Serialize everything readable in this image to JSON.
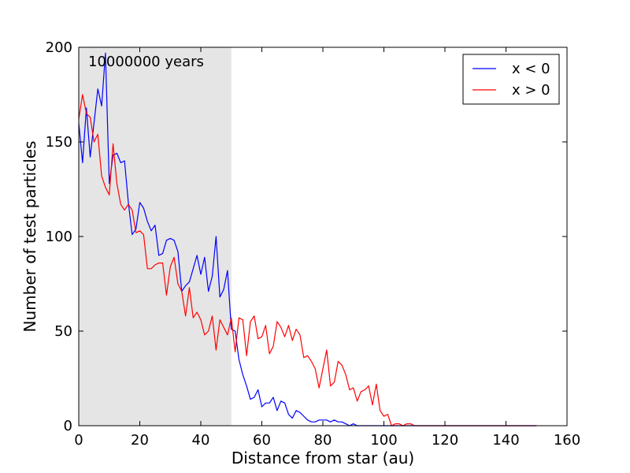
{
  "colors": {
    "shade": "#e5e5e5",
    "series_neg": "#0000ff",
    "series_pos": "#ff0000",
    "axes": "#000000"
  },
  "chart_data": {
    "type": "line",
    "title": "",
    "xlabel": "Distance from star (au)",
    "ylabel": "Number of test particles",
    "annotation": "10000000 years",
    "xlim": [
      0,
      160
    ],
    "ylim": [
      0,
      200
    ],
    "xticks": [
      0,
      20,
      40,
      60,
      80,
      100,
      120,
      140,
      160
    ],
    "yticks": [
      0,
      50,
      100,
      150,
      200
    ],
    "shaded_region": [
      0,
      50
    ],
    "grid": false,
    "legend_position": "top-right",
    "x": [
      0,
      1.25,
      2.5,
      3.75,
      5,
      6.25,
      7.5,
      8.75,
      10,
      11.25,
      12.5,
      13.75,
      15,
      16.25,
      17.5,
      18.75,
      20,
      21.25,
      22.5,
      23.75,
      25,
      26.25,
      27.5,
      28.75,
      30,
      31.25,
      32.5,
      33.75,
      35,
      36.25,
      37.5,
      38.75,
      40,
      41.25,
      42.5,
      43.75,
      45,
      46.25,
      47.5,
      48.75,
      50,
      51.25,
      52.5,
      53.75,
      55,
      56.25,
      57.5,
      58.75,
      60,
      61.25,
      62.5,
      63.75,
      65,
      66.25,
      67.5,
      68.75,
      70,
      71.25,
      72.5,
      73.75,
      75,
      76.25,
      77.5,
      78.75,
      80,
      81.25,
      82.5,
      83.75,
      85,
      86.25,
      87.5,
      88.75,
      90,
      91.25,
      92.5,
      93.75,
      95,
      96.25,
      97.5,
      98.75,
      100,
      101.25,
      102.5,
      103.75,
      105,
      106.25,
      107.5,
      108.75,
      110,
      111.25,
      112.5,
      113.75,
      115,
      116.25,
      117.5,
      118.75,
      120,
      121.25,
      122.5,
      123.75,
      125,
      126.25,
      127.5,
      128.75,
      130,
      131.25,
      132.5,
      133.75,
      135,
      136.25,
      137.5,
      138.75,
      140,
      141.25,
      142.5,
      143.75,
      145,
      146.25,
      147.5,
      148.75,
      150
    ],
    "series": [
      {
        "name": "x < 0",
        "values": [
          160,
          139,
          168,
          142,
          160,
          178,
          169,
          197,
          128,
          143,
          144,
          139,
          140,
          118,
          101,
          104,
          118,
          115,
          108,
          103,
          106,
          90,
          91,
          98,
          99,
          98,
          92,
          71,
          74,
          76,
          83,
          90,
          80,
          89,
          71,
          79,
          100,
          68,
          72,
          82,
          51,
          50,
          35,
          27,
          21,
          14,
          15,
          19,
          10,
          12,
          12,
          15,
          8,
          13,
          12,
          6,
          4,
          8,
          7,
          5,
          3,
          2,
          2,
          3,
          3,
          3,
          2,
          3,
          2,
          2,
          1,
          0,
          1,
          0,
          0,
          0,
          0,
          0,
          0,
          0,
          0,
          0,
          0,
          0,
          0,
          0,
          0,
          0,
          0,
          0,
          0,
          0,
          0,
          0,
          0,
          0,
          0,
          0,
          0,
          0,
          0,
          0,
          0,
          0,
          0,
          0,
          0,
          0,
          0,
          0,
          0,
          0,
          0,
          0,
          0,
          0,
          0,
          0,
          0,
          0,
          0
        ]
      },
      {
        "name": "x > 0",
        "values": [
          162,
          175,
          165,
          163,
          150,
          154,
          132,
          126,
          122,
          149,
          128,
          117,
          114,
          117,
          114,
          102,
          103,
          101,
          83,
          83,
          85,
          86,
          86,
          69,
          84,
          89,
          75,
          71,
          58,
          73,
          57,
          60,
          56,
          48,
          50,
          58,
          40,
          56,
          52,
          48,
          57,
          39,
          57,
          56,
          37,
          55,
          58,
          46,
          47,
          53,
          38,
          42,
          55,
          52,
          47,
          53,
          45,
          51,
          48,
          36,
          37,
          34,
          30,
          20,
          30,
          40,
          21,
          23,
          34,
          32,
          27,
          19,
          20,
          13,
          18,
          19,
          21,
          11,
          22,
          8,
          5,
          6,
          0,
          1,
          1,
          0,
          1,
          1,
          0,
          0,
          0,
          0,
          0,
          0,
          0,
          0,
          0,
          0,
          0,
          0,
          0,
          0,
          0,
          0,
          0,
          0,
          0,
          0,
          0,
          0,
          0,
          0,
          0,
          0,
          0,
          0,
          0,
          0,
          0,
          0,
          0
        ]
      }
    ]
  }
}
